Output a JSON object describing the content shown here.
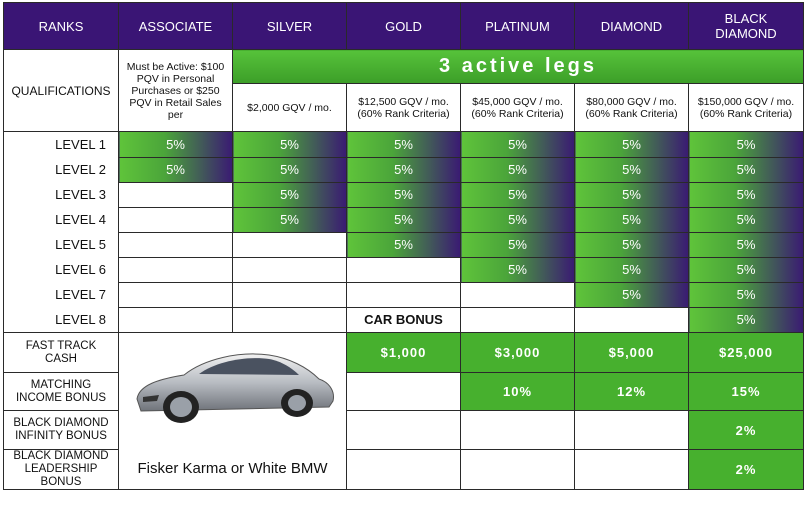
{
  "header": {
    "ranks": "RANKS",
    "associate": "ASSOCIATE",
    "silver": "SILVER",
    "gold": "GOLD",
    "platinum": "PLATINUM",
    "diamond": "DIAMOND",
    "black_diamond": "BLACK DIAMOND"
  },
  "qualifications": {
    "label": "QUALIFICATIONS",
    "associate": "Must be Active: $100 PQV in Personal Purchases or $250 PQV in Retail Sales per",
    "active_legs": "3 active legs",
    "silver": "$2,000 GQV / mo.",
    "gold": "$12,500 GQV / mo. (60% Rank Criteria)",
    "platinum": "$45,000 GQV / mo. (60% Rank Criteria)",
    "diamond": "$80,000 GQV / mo. (60% Rank Criteria)",
    "black_diamond": "$150,000 GQV / mo. (60% Rank Criteria)"
  },
  "levels": [
    {
      "label": "LEVEL 1",
      "cells": [
        "5%",
        "5%",
        "5%",
        "5%",
        "5%",
        "5%"
      ]
    },
    {
      "label": "LEVEL 2",
      "cells": [
        "5%",
        "5%",
        "5%",
        "5%",
        "5%",
        "5%"
      ]
    },
    {
      "label": "LEVEL 3",
      "cells": [
        "",
        "5%",
        "5%",
        "5%",
        "5%",
        "5%"
      ]
    },
    {
      "label": "LEVEL 4",
      "cells": [
        "",
        "5%",
        "5%",
        "5%",
        "5%",
        "5%"
      ]
    },
    {
      "label": "LEVEL 5",
      "cells": [
        "",
        "",
        "5%",
        "5%",
        "5%",
        "5%"
      ]
    },
    {
      "label": "LEVEL 6",
      "cells": [
        "",
        "",
        "",
        "5%",
        "5%",
        "5%"
      ]
    },
    {
      "label": "LEVEL 7",
      "cells": [
        "",
        "",
        "",
        "",
        "5%",
        "5%"
      ]
    },
    {
      "label": "LEVEL 8",
      "cells": [
        "",
        "",
        "CAR BONUS",
        "",
        "",
        "5%"
      ]
    }
  ],
  "bonuses": {
    "fast_track": {
      "label": "FAST TRACK CASH",
      "gold": "$1,000",
      "platinum": "$3,000",
      "diamond": "$5,000",
      "black_diamond": "$25,000"
    },
    "matching": {
      "label": "MATCHING INCOME BONUS",
      "platinum": "10%",
      "diamond": "12%",
      "black_diamond": "15%"
    },
    "infinity": {
      "label": "BLACK DIAMOND INFINITY BONUS",
      "black_diamond": "2%"
    },
    "leadership": {
      "label": "BLACK DIAMOND LEADERSHIP BONUS",
      "black_diamond": "2%"
    }
  },
  "car": {
    "caption": "Fisker Karma or White BMW",
    "image": "silver-sports-car"
  },
  "colors": {
    "header": "#3a1575",
    "green": "#47b02e",
    "gradient_end": "#3a1a73"
  }
}
